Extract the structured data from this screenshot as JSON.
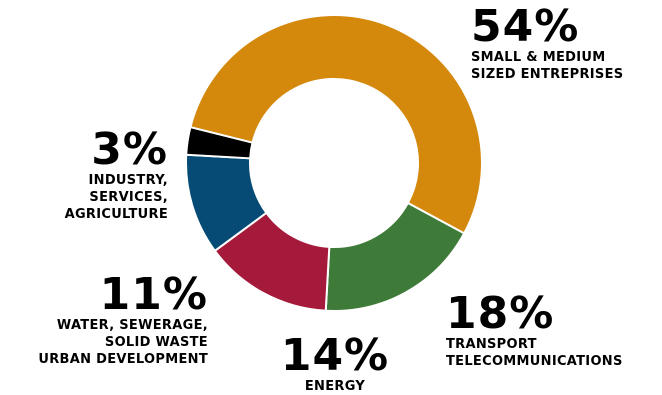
{
  "chart_data": {
    "type": "pie",
    "variant": "donut",
    "slices": [
      {
        "value": 54,
        "value_label": "54%",
        "label_lines": [
          "SMALL & MEDIUM",
          "SIZED ENTREPRISES"
        ],
        "color": "#D4880C"
      },
      {
        "value": 18,
        "value_label": "18%",
        "label_lines": [
          "TRANSPORT",
          "TELECOMMUNICATIONS"
        ],
        "color": "#3E7A38"
      },
      {
        "value": 14,
        "value_label": "14%",
        "label_lines": [
          "ENERGY"
        ],
        "color": "#A5193A"
      },
      {
        "value": 11,
        "value_label": "11%",
        "label_lines": [
          "WATER, SEWERAGE,",
          "SOLID WASTE",
          "URBAN DEVELOPMENT"
        ],
        "color": "#054B76"
      },
      {
        "value": 3,
        "value_label": "3%",
        "label_lines": [
          "INDUSTRY,",
          "SERVICES,",
          "AGRICULTURE"
        ],
        "color": "#000000"
      }
    ]
  }
}
